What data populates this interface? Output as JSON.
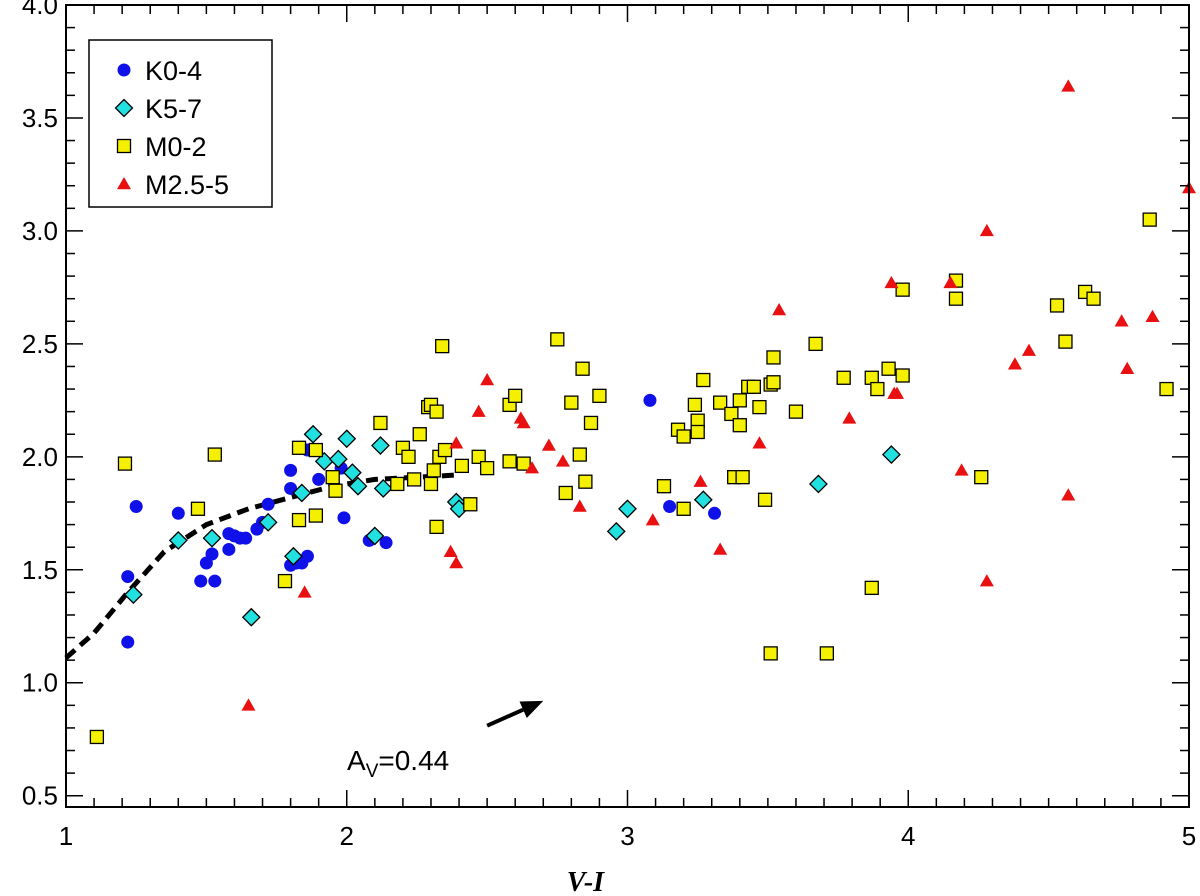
{
  "chart_data": {
    "type": "scatter",
    "title": "",
    "xlabel": "V-I",
    "ylabel": "",
    "xlim": [
      1,
      5
    ],
    "ylim": [
      0.45,
      4.0
    ],
    "xticks": [
      1,
      2,
      3,
      4,
      5
    ],
    "xtick_labels": [
      "1",
      "2",
      "3",
      "4",
      "5"
    ],
    "yticks": [
      0.5,
      1.0,
      1.5,
      2.0,
      2.5,
      3.0,
      3.5,
      4.0
    ],
    "ytick_labels": [
      "0.5",
      "1.0",
      "1.5",
      "2.0",
      "2.5",
      "3.0",
      "3.5",
      "4.0"
    ],
    "grid": false,
    "legend_position": "top-left",
    "series": [
      {
        "name": "K0-4",
        "marker": "circle",
        "color": "#1010e8",
        "points": [
          [
            1.22,
            1.47
          ],
          [
            1.22,
            1.18
          ],
          [
            1.25,
            1.78
          ],
          [
            1.4,
            1.75
          ],
          [
            1.48,
            1.45
          ],
          [
            1.5,
            1.53
          ],
          [
            1.52,
            1.57
          ],
          [
            1.53,
            1.45
          ],
          [
            1.58,
            1.59
          ],
          [
            1.58,
            1.66
          ],
          [
            1.6,
            1.65
          ],
          [
            1.62,
            1.64
          ],
          [
            1.64,
            1.64
          ],
          [
            1.68,
            1.68
          ],
          [
            1.7,
            1.71
          ],
          [
            1.72,
            1.79
          ],
          [
            1.8,
            1.52
          ],
          [
            1.8,
            1.86
          ],
          [
            1.8,
            1.94
          ],
          [
            1.82,
            1.53
          ],
          [
            1.84,
            1.53
          ],
          [
            1.86,
            1.56
          ],
          [
            1.86,
            2.03
          ],
          [
            1.9,
            1.9
          ],
          [
            1.98,
            1.95
          ],
          [
            1.99,
            1.73
          ],
          [
            2.08,
            1.63
          ],
          [
            2.14,
            1.62
          ],
          [
            3.08,
            2.25
          ],
          [
            3.15,
            1.78
          ],
          [
            3.31,
            1.75
          ]
        ]
      },
      {
        "name": "K5-7",
        "marker": "diamond",
        "color": "#20e0e0",
        "points": [
          [
            1.24,
            1.39
          ],
          [
            1.4,
            1.63
          ],
          [
            1.52,
            1.64
          ],
          [
            1.66,
            1.29
          ],
          [
            1.72,
            1.71
          ],
          [
            1.81,
            1.56
          ],
          [
            1.84,
            1.84
          ],
          [
            1.88,
            2.1
          ],
          [
            1.92,
            1.98
          ],
          [
            1.97,
            1.99
          ],
          [
            2.0,
            2.08
          ],
          [
            2.02,
            1.93
          ],
          [
            2.04,
            1.87
          ],
          [
            2.12,
            2.05
          ],
          [
            2.13,
            1.86
          ],
          [
            2.1,
            1.65
          ],
          [
            2.39,
            1.8
          ],
          [
            2.4,
            1.77
          ],
          [
            2.96,
            1.67
          ],
          [
            3.0,
            1.77
          ],
          [
            3.27,
            1.81
          ],
          [
            3.68,
            1.88
          ],
          [
            3.94,
            2.01
          ]
        ]
      },
      {
        "name": "M0-2",
        "marker": "square",
        "color": "#f5f000",
        "points": [
          [
            1.11,
            0.76
          ],
          [
            1.21,
            1.97
          ],
          [
            1.47,
            1.77
          ],
          [
            1.53,
            2.01
          ],
          [
            1.78,
            1.45
          ],
          [
            1.83,
            1.72
          ],
          [
            1.83,
            2.04
          ],
          [
            1.89,
            1.74
          ],
          [
            1.89,
            2.03
          ],
          [
            1.95,
            1.91
          ],
          [
            1.96,
            1.85
          ],
          [
            2.12,
            2.15
          ],
          [
            2.18,
            1.88
          ],
          [
            2.2,
            2.04
          ],
          [
            2.22,
            2.0
          ],
          [
            2.24,
            1.9
          ],
          [
            2.26,
            2.1
          ],
          [
            2.29,
            2.22
          ],
          [
            2.3,
            2.23
          ],
          [
            2.3,
            1.88
          ],
          [
            2.31,
            1.94
          ],
          [
            2.32,
            2.2
          ],
          [
            2.33,
            2.0
          ],
          [
            2.34,
            2.49
          ],
          [
            2.35,
            2.03
          ],
          [
            2.32,
            1.69
          ],
          [
            2.41,
            1.96
          ],
          [
            2.44,
            1.79
          ],
          [
            2.47,
            2.0
          ],
          [
            2.5,
            1.95
          ],
          [
            2.58,
            1.98
          ],
          [
            2.58,
            2.23
          ],
          [
            2.6,
            2.27
          ],
          [
            2.63,
            1.97
          ],
          [
            2.75,
            2.52
          ],
          [
            2.78,
            1.84
          ],
          [
            2.8,
            2.24
          ],
          [
            2.83,
            2.01
          ],
          [
            2.84,
            2.39
          ],
          [
            2.85,
            1.89
          ],
          [
            2.87,
            2.15
          ],
          [
            2.9,
            2.27
          ],
          [
            3.13,
            1.87
          ],
          [
            3.18,
            2.12
          ],
          [
            3.2,
            2.09
          ],
          [
            3.2,
            1.77
          ],
          [
            3.24,
            2.23
          ],
          [
            3.25,
            2.16
          ],
          [
            3.25,
            2.11
          ],
          [
            3.27,
            2.34
          ],
          [
            3.33,
            2.24
          ],
          [
            3.37,
            2.19
          ],
          [
            3.38,
            1.91
          ],
          [
            3.4,
            2.25
          ],
          [
            3.4,
            2.14
          ],
          [
            3.41,
            1.91
          ],
          [
            3.43,
            2.31
          ],
          [
            3.45,
            2.31
          ],
          [
            3.47,
            2.22
          ],
          [
            3.49,
            1.81
          ],
          [
            3.51,
            2.32
          ],
          [
            3.52,
            2.33
          ],
          [
            3.52,
            2.44
          ],
          [
            3.51,
            1.13
          ],
          [
            3.6,
            2.2
          ],
          [
            3.67,
            2.5
          ],
          [
            3.71,
            1.13
          ],
          [
            3.77,
            2.35
          ],
          [
            3.87,
            2.35
          ],
          [
            3.87,
            1.42
          ],
          [
            3.89,
            2.3
          ],
          [
            3.93,
            2.39
          ],
          [
            3.98,
            2.36
          ],
          [
            3.98,
            2.74
          ],
          [
            4.17,
            2.78
          ],
          [
            4.17,
            2.7
          ],
          [
            4.26,
            1.91
          ],
          [
            4.53,
            2.67
          ],
          [
            4.56,
            2.51
          ],
          [
            4.63,
            2.73
          ],
          [
            4.66,
            2.7
          ],
          [
            4.86,
            3.05
          ],
          [
            4.92,
            2.3
          ]
        ]
      },
      {
        "name": "M2.5-5",
        "marker": "triangle",
        "color": "#e81010",
        "points": [
          [
            1.65,
            0.9
          ],
          [
            1.85,
            1.4
          ],
          [
            2.37,
            1.58
          ],
          [
            2.39,
            2.06
          ],
          [
            2.39,
            1.53
          ],
          [
            2.47,
            2.2
          ],
          [
            2.5,
            2.34
          ],
          [
            2.62,
            2.17
          ],
          [
            2.63,
            2.15
          ],
          [
            2.66,
            1.95
          ],
          [
            2.72,
            2.05
          ],
          [
            2.77,
            1.98
          ],
          [
            2.83,
            1.78
          ],
          [
            3.09,
            1.72
          ],
          [
            3.26,
            1.89
          ],
          [
            3.33,
            1.59
          ],
          [
            3.47,
            2.06
          ],
          [
            3.54,
            2.65
          ],
          [
            3.79,
            2.17
          ],
          [
            3.94,
            2.77
          ],
          [
            3.95,
            2.28
          ],
          [
            3.96,
            2.28
          ],
          [
            4.15,
            2.77
          ],
          [
            4.19,
            1.94
          ],
          [
            4.28,
            3.0
          ],
          [
            4.28,
            1.45
          ],
          [
            4.38,
            2.41
          ],
          [
            4.43,
            2.47
          ],
          [
            4.57,
            3.64
          ],
          [
            4.57,
            1.83
          ],
          [
            4.76,
            2.6
          ],
          [
            4.78,
            2.39
          ],
          [
            4.87,
            2.62
          ],
          [
            5.0,
            3.19
          ]
        ]
      }
    ],
    "reference_curve": {
      "style": "dashed",
      "color": "#000000",
      "points": [
        [
          1.0,
          1.11
        ],
        [
          1.1,
          1.22
        ],
        [
          1.22,
          1.4
        ],
        [
          1.35,
          1.58
        ],
        [
          1.5,
          1.7
        ],
        [
          1.65,
          1.77
        ],
        [
          1.8,
          1.82
        ],
        [
          1.95,
          1.87
        ],
        [
          2.1,
          1.9
        ],
        [
          2.25,
          1.91
        ],
        [
          2.4,
          1.92
        ]
      ]
    },
    "annotation": {
      "text_main": "A",
      "text_sub": "V",
      "text_value": "=0.44",
      "arrow_from": [
        2.5,
        0.81
      ],
      "arrow_to": [
        2.7,
        0.92
      ]
    }
  }
}
